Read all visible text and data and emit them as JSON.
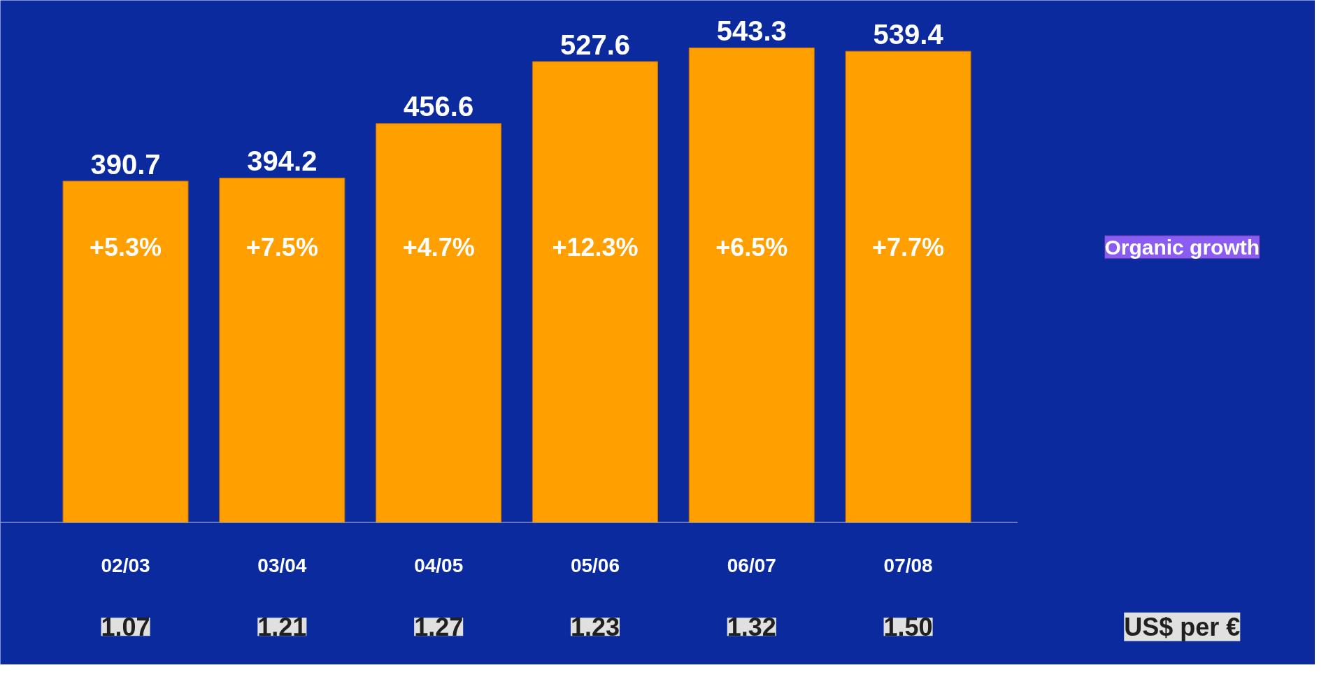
{
  "chart_data": {
    "type": "bar",
    "categories": [
      "02/03",
      "03/04",
      "04/05",
      "05/06",
      "06/07",
      "07/08"
    ],
    "values": [
      390.7,
      394.2,
      456.6,
      527.6,
      543.3,
      539.4
    ],
    "color": "#ff9f00",
    "data_labels": true,
    "grid": false,
    "tick_labels": "x",
    "annotations": [
      "+5.3%",
      "+7.5%",
      "+4.7%",
      "+12.3%",
      "+6.5%",
      "+7.7%",
      "Organic growth",
      "1.07",
      "1.21",
      "1.27",
      "1.23",
      "1.32",
      "1.50",
      "US$ per €"
    ]
  }
}
